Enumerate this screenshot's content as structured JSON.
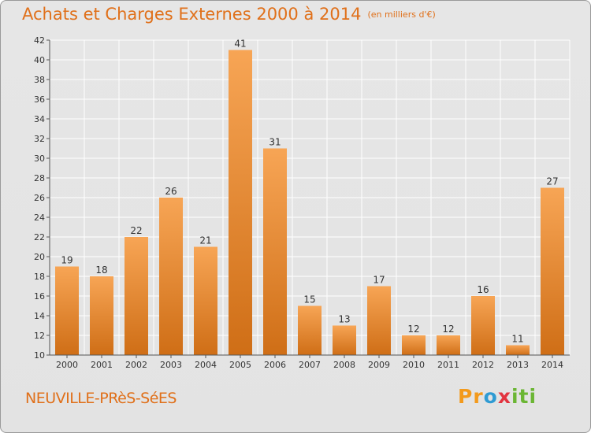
{
  "title": "Achats et Charges Externes 2000 à 2014",
  "subtitle": "(en milliers d'€)",
  "commune": "NEUVILLE-PRèS-SéES",
  "logo": {
    "text": "Proxiti",
    "p1": "Pr",
    "p2": "o",
    "p3": "x",
    "p4": "iti"
  },
  "colors": {
    "accent": "#e0701a",
    "bar_light": "#f7a555",
    "bar_dark": "#cf6e16",
    "background": "#e4e4e4",
    "grid": "#ffffff"
  },
  "chart_data": {
    "type": "bar",
    "title": "Achats et Charges Externes 2000 à 2014",
    "subtitle": "(en milliers d'€)",
    "xlabel": "",
    "ylabel": "",
    "ylim": [
      10,
      42
    ],
    "yticks": [
      10,
      12,
      14,
      16,
      18,
      20,
      22,
      24,
      26,
      28,
      30,
      32,
      34,
      36,
      38,
      40,
      42
    ],
    "grid": true,
    "categories": [
      "2000",
      "2001",
      "2002",
      "2003",
      "2004",
      "2005",
      "2006",
      "2007",
      "2008",
      "2009",
      "2010",
      "2011",
      "2012",
      "2013",
      "2014"
    ],
    "values": [
      19,
      18,
      22,
      26,
      21,
      41,
      31,
      15,
      13,
      17,
      12,
      12,
      16,
      11,
      27
    ]
  }
}
